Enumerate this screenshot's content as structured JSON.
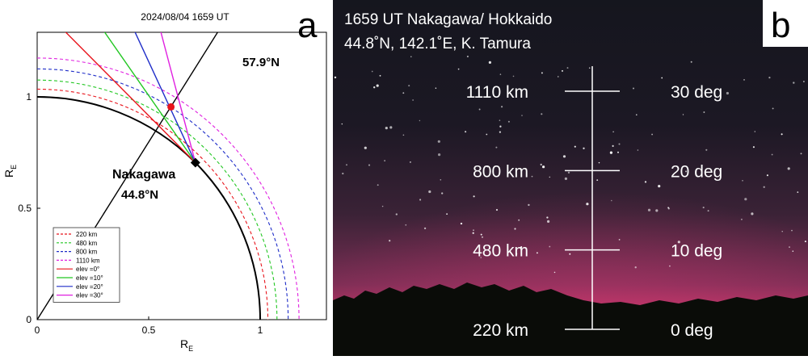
{
  "chart_data": [
    {
      "type": "line",
      "panel_letter": "a",
      "title": "2024/08/04 1659 UT",
      "xlabel": "R_E",
      "ylabel": "R_E",
      "xlim": [
        0,
        1.3
      ],
      "ylim": [
        0,
        1.3
      ],
      "xticks": [
        "0",
        "0.5",
        "1"
      ],
      "yticks": [
        "0",
        "0.5",
        "1"
      ],
      "earth_radius": 1.0,
      "station": {
        "name": "Nakagawa",
        "lat_label": "44.8°N",
        "lat": 44.8,
        "color": "#000000"
      },
      "field_line": {
        "lat_label": "57.9°N",
        "lat": 57.9,
        "color": "#000000"
      },
      "intersection_point": {
        "x": 0.6,
        "y": 0.955,
        "color": "#e8141c"
      },
      "altitude_series": [
        {
          "name": "220 km",
          "alt_km": 220,
          "color": "#e8141c"
        },
        {
          "name": "480 km",
          "alt_km": 480,
          "color": "#22c722"
        },
        {
          "name": "800 km",
          "alt_km": 800,
          "color": "#1f2dc8"
        },
        {
          "name": "1110 km",
          "alt_km": 1110,
          "color": "#e020e0"
        }
      ],
      "elevation_series": [
        {
          "name": "elev =0°",
          "elev_deg": 0,
          "color": "#e8141c"
        },
        {
          "name": "elev =10°",
          "elev_deg": 10,
          "color": "#22c722"
        },
        {
          "name": "elev =20°",
          "elev_deg": 20,
          "color": "#1f2dc8"
        },
        {
          "name": "elev =30°",
          "elev_deg": 30,
          "color": "#e020e0"
        }
      ],
      "legend_position": "bottom-left"
    },
    {
      "type": "table",
      "panel_letter": "b",
      "title_line1": "1659 UT Nakagawa/ Hokkaido",
      "title_line2": "44.8˚N, 142.1˚E, K. Tamura",
      "scale": [
        {
          "alt_label": "1110 km",
          "elev_label": "30 deg",
          "elev_deg": 30
        },
        {
          "alt_label": "800 km",
          "elev_label": "20 deg",
          "elev_deg": 20
        },
        {
          "alt_label": "480 km",
          "elev_label": "10 deg",
          "elev_deg": 10
        },
        {
          "alt_label": "220 km",
          "elev_label": "0 deg",
          "elev_deg": 0
        }
      ],
      "aurora_color": "#d8306a"
    }
  ]
}
